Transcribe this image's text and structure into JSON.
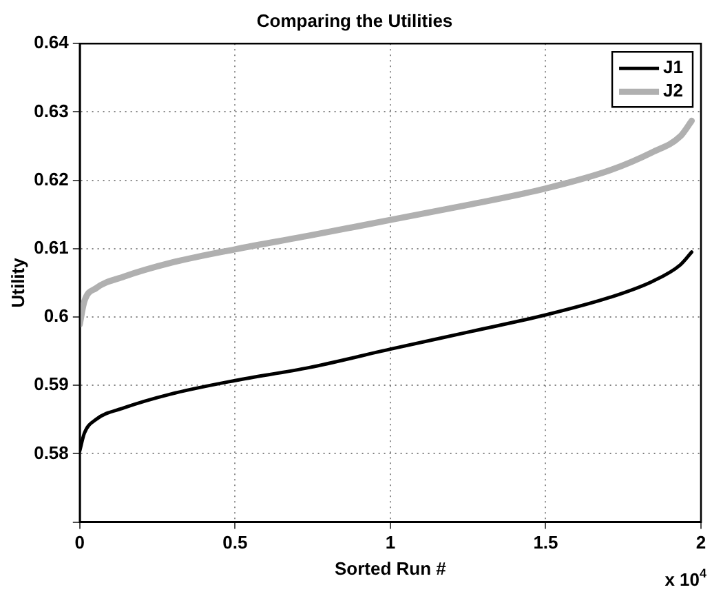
{
  "chart_data": {
    "type": "line",
    "title": "Comparing the Utilities",
    "xlabel": "Sorted Run #",
    "ylabel": "Utility",
    "annotations": [
      "x 10$^{4}$"
    ],
    "xlim": [
      0,
      2
    ],
    "xticks": [
      0,
      0.5,
      1,
      1.5,
      2
    ],
    "ylim": [
      0.57,
      0.64
    ],
    "yticks": [
      {
        "value": 0.57,
        "label": null
      },
      0.58,
      0.59,
      0.6,
      0.61,
      0.62,
      0.63,
      0.64
    ],
    "grid": true,
    "legend": "top right",
    "marker": "none",
    "line_style": "solid",
    "series": [
      {
        "name": "J1",
        "color": "#000000",
        "x": [
          0,
          0.0149,
          0.0522,
          0.1418,
          0.291,
          0.5,
          0.7388,
          1,
          1.2612,
          1.5,
          1.709,
          1.8433,
          1.9328,
          1.9701
        ],
        "values": [
          0.5804,
          0.583,
          0.585,
          0.5867,
          0.5887,
          0.5907,
          0.5926,
          0.5953,
          0.5979,
          0.6003,
          0.6029,
          0.6052,
          0.6076,
          0.6095
        ]
      },
      {
        "name": "J2",
        "color": "#b0b0b0",
        "x": [
          0,
          0.0149,
          0.0522,
          0.1418,
          0.291,
          0.5,
          0.7388,
          1,
          1.2612,
          1.5,
          1.709,
          1.8433,
          1.9328,
          1.9701
        ],
        "values": [
          0.5989,
          0.6023,
          0.6042,
          0.6059,
          0.6079,
          0.6099,
          0.6119,
          0.6142,
          0.6165,
          0.6188,
          0.6215,
          0.6241,
          0.6264,
          0.6287
        ]
      }
    ]
  }
}
